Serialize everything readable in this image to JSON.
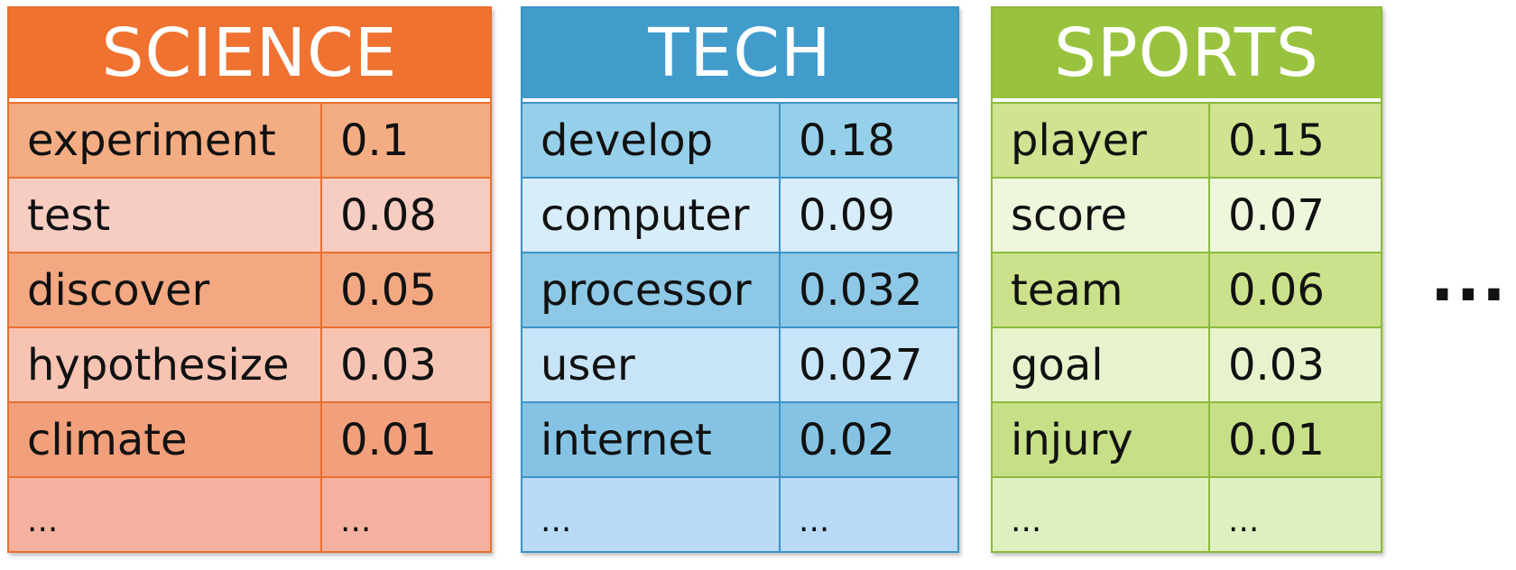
{
  "topics": [
    {
      "title": "SCIENCE",
      "accent": "#f07230",
      "rows": [
        {
          "word": "experiment",
          "prob": "0.1"
        },
        {
          "word": "test",
          "prob": "0.08"
        },
        {
          "word": "discover",
          "prob": "0.05"
        },
        {
          "word": "hypothesize",
          "prob": "0.03"
        },
        {
          "word": "climate",
          "prob": "0.01"
        },
        {
          "word": "...",
          "prob": "..."
        }
      ]
    },
    {
      "title": "TECH",
      "accent": "#419ccc",
      "rows": [
        {
          "word": "develop",
          "prob": "0.18"
        },
        {
          "word": "computer",
          "prob": "0.09"
        },
        {
          "word": "processor",
          "prob": "0.032"
        },
        {
          "word": "user",
          "prob": "0.027"
        },
        {
          "word": "internet",
          "prob": "0.02"
        },
        {
          "word": "...",
          "prob": "..."
        }
      ]
    },
    {
      "title": "SPORTS",
      "accent": "#99c33e",
      "rows": [
        {
          "word": "player",
          "prob": "0.15"
        },
        {
          "word": "score",
          "prob": "0.07"
        },
        {
          "word": "team",
          "prob": "0.06"
        },
        {
          "word": "goal",
          "prob": "0.03"
        },
        {
          "word": "injury",
          "prob": "0.01"
        },
        {
          "word": "...",
          "prob": "..."
        }
      ]
    }
  ],
  "more_indicator": "..."
}
